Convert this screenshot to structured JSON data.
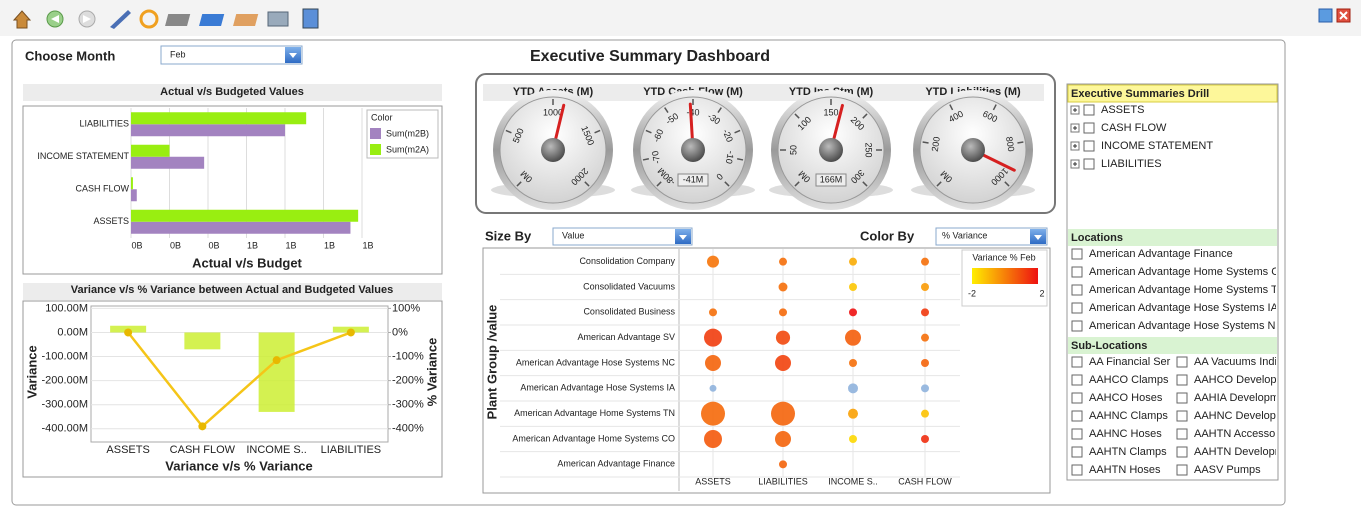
{
  "header": {
    "choose_month_label": "Choose Month",
    "month": "Feb",
    "title": "Executive Summary Dashboard"
  },
  "chart_data": [
    {
      "type": "hbar",
      "title": "Actual v/s Budgeted Values",
      "x_label": "Actual v/s Budget",
      "categories": [
        "LIABILITIES",
        "INCOME STATEMENT",
        "CASH FLOW",
        "ASSETS"
      ],
      "legend_title": "Color",
      "series": [
        {
          "name": "Sum(m2B)",
          "color": "#a383c0",
          "values": [
            0.8,
            0.38,
            0.03,
            1.14
          ]
        },
        {
          "name": "Sum(m2A)",
          "color": "#99ee11",
          "values": [
            0.91,
            0.2,
            0.01,
            1.18
          ]
        }
      ],
      "xlim": [
        0,
        1.2
      ],
      "xticks": [
        {
          "value": 0,
          "label": "0B"
        },
        {
          "value": 0.2,
          "label": "0B"
        },
        {
          "value": 0.4,
          "label": "0B"
        },
        {
          "value": 0.6,
          "label": "1B"
        },
        {
          "value": 0.8,
          "label": "1B"
        },
        {
          "value": 1.0,
          "label": "1B"
        },
        {
          "value": 1.2,
          "label": "1B"
        }
      ],
      "grid": true
    },
    {
      "type": "combo",
      "title": "Variance v/s % Variance between Actual and Budgeted Values",
      "x_label": "Variance v/s % Variance",
      "y_label": "Variance",
      "y2_label": "% Variance",
      "categories": [
        "ASSETS",
        "CASH FLOW",
        "INCOME S..",
        "LIABILITIES"
      ],
      "series": [
        {
          "type": "bar",
          "color": "#ccee33",
          "values": [
            28,
            -70,
            -330,
            24
          ]
        },
        {
          "type": "line",
          "axis": "y2",
          "color": "#f5c518",
          "values": [
            0,
            -390,
            -115,
            0
          ]
        }
      ],
      "ylim": [
        -455,
        110
      ],
      "yticks": [
        {
          "value": 100,
          "label": "100.00M"
        },
        {
          "value": 0,
          "label": "0.00M"
        },
        {
          "value": -100,
          "label": "-100.00M"
        },
        {
          "value": -200,
          "label": "-200.00M"
        },
        {
          "value": -300,
          "label": "-300.00M"
        },
        {
          "value": -400,
          "label": "-400.00M"
        }
      ],
      "y2lim": [
        -455,
        110
      ],
      "y2ticks": [
        {
          "value": 100,
          "label": "100%"
        },
        {
          "value": 0,
          "label": "0%"
        },
        {
          "value": -100,
          "label": "-100%"
        },
        {
          "value": -200,
          "label": "-200%"
        },
        {
          "value": -300,
          "label": "-300%"
        },
        {
          "value": -400,
          "label": "-400%"
        }
      ],
      "ytick_color": "#55cc00",
      "y2tick_color": "#f0a000",
      "grid": true
    },
    {
      "type": "gauge",
      "title": "YTD Assets (M)",
      "range": [
        0,
        2000
      ],
      "value": 1100,
      "ticks": [
        {
          "value": 0,
          "label": "0M"
        },
        500,
        1000,
        1500,
        2000
      ]
    },
    {
      "type": "gauge",
      "title": "YTD Cash Flow (M)",
      "range": [
        -80,
        0
      ],
      "value": -41,
      "value_label": "-41M",
      "ticks": [
        {
          "value": -80,
          "label": "-80M"
        },
        -70,
        -60,
        -50,
        -40,
        -30,
        -20,
        -10,
        0
      ]
    },
    {
      "type": "gauge",
      "title": "YTD Inc Stm (M)",
      "range": [
        0,
        300
      ],
      "value": 166,
      "value_label": "166M",
      "ticks": [
        {
          "value": 0,
          "label": "0M"
        },
        50,
        100,
        150,
        200,
        250,
        300
      ]
    },
    {
      "type": "gauge",
      "title": "YTD Liabilities (M)",
      "range": [
        0,
        1000
      ],
      "value": 930,
      "ticks": [
        {
          "value": 0,
          "label": "0M"
        },
        200,
        400,
        600,
        800,
        1000
      ]
    },
    {
      "type": "bubble",
      "size_by_label": "Size By",
      "size_by": "Value",
      "color_by_label": "Color By",
      "color_by": "% Variance",
      "y_label": "Plant Group /value",
      "x_categories": [
        "ASSETS",
        "LIABILITIES",
        "INCOME S..",
        "CASH FLOW"
      ],
      "rows": [
        {
          "label": "Consolidation Company",
          "sizes": [
            36,
            16,
            16,
            16
          ],
          "variances": [
            0.2,
            0.3,
            -0.8,
            0.3
          ]
        },
        {
          "label": "Consolidated Vacuums",
          "sizes": [
            null,
            20,
            16,
            16
          ],
          "variances": [
            null,
            0.3,
            -1.3,
            -0.5
          ]
        },
        {
          "label": "Consolidated Business",
          "sizes": [
            16,
            16,
            16,
            16
          ],
          "variances": [
            0.3,
            0.4,
            2,
            1.3
          ]
        },
        {
          "label": "American Advantage SV",
          "sizes": [
            81,
            50,
            64,
            16
          ],
          "variances": [
            1.2,
            1,
            0.6,
            0.3
          ]
        },
        {
          "label": "American Advantage Hose Systems NC",
          "sizes": [
            64,
            64,
            16,
            16
          ],
          "variances": [
            0.5,
            1.1,
            0.3,
            0.5
          ]
        },
        {
          "label": "American Advantage Hose Systems  IA",
          "sizes": [
            12,
            null,
            25,
            16
          ],
          "variances": [
            null,
            null,
            null,
            null
          ]
        },
        {
          "label": "American Advantage Home Systems TN",
          "sizes": [
            144,
            144,
            25,
            16
          ],
          "variances": [
            0.4,
            0.5,
            -0.6,
            -1.2
          ]
        },
        {
          "label": "American Advantage Home Systems CO",
          "sizes": [
            81,
            64,
            16,
            16
          ],
          "variances": [
            0.7,
            0.5,
            -1.6,
            1.5
          ]
        },
        {
          "label": "American Advantage Finance",
          "sizes": [
            null,
            16,
            null,
            null
          ],
          "variances": [
            null,
            0.5,
            null,
            null
          ]
        }
      ],
      "legend_title": "Variance % Feb",
      "color_range": [
        -2,
        2
      ],
      "colors": [
        "#ffee00",
        "#ee1111"
      ],
      "null_color": "#8fb3dd"
    }
  ],
  "drill": {
    "title": "Executive Summaries Drill",
    "items": [
      "ASSETS",
      "CASH FLOW",
      "INCOME STATEMENT",
      "LIABILITIES"
    ]
  },
  "locations": {
    "title": "Locations",
    "items": [
      "American Advantage Finance",
      "American Advantage Home Systems CO",
      "American Advantage Home Systems TN",
      "American Advantage Hose Systems  IA",
      "American Advantage Hose Systems NC"
    ]
  },
  "sub_locations": {
    "title": "Sub-Locations",
    "items": [
      "AA Financial Ser",
      "AA Vacuums Indi",
      "AAHCO Clamps",
      "AAHCO Developr",
      "AAHCO Hoses",
      "AAHIA Developm",
      "AAHNC Clamps",
      "AAHNC Developm",
      "AAHNC Hoses",
      "AAHTN Accessori",
      "AAHTN Clamps",
      "AAHTN Developm",
      "AAHTN Hoses",
      "AASV Pumps"
    ]
  }
}
